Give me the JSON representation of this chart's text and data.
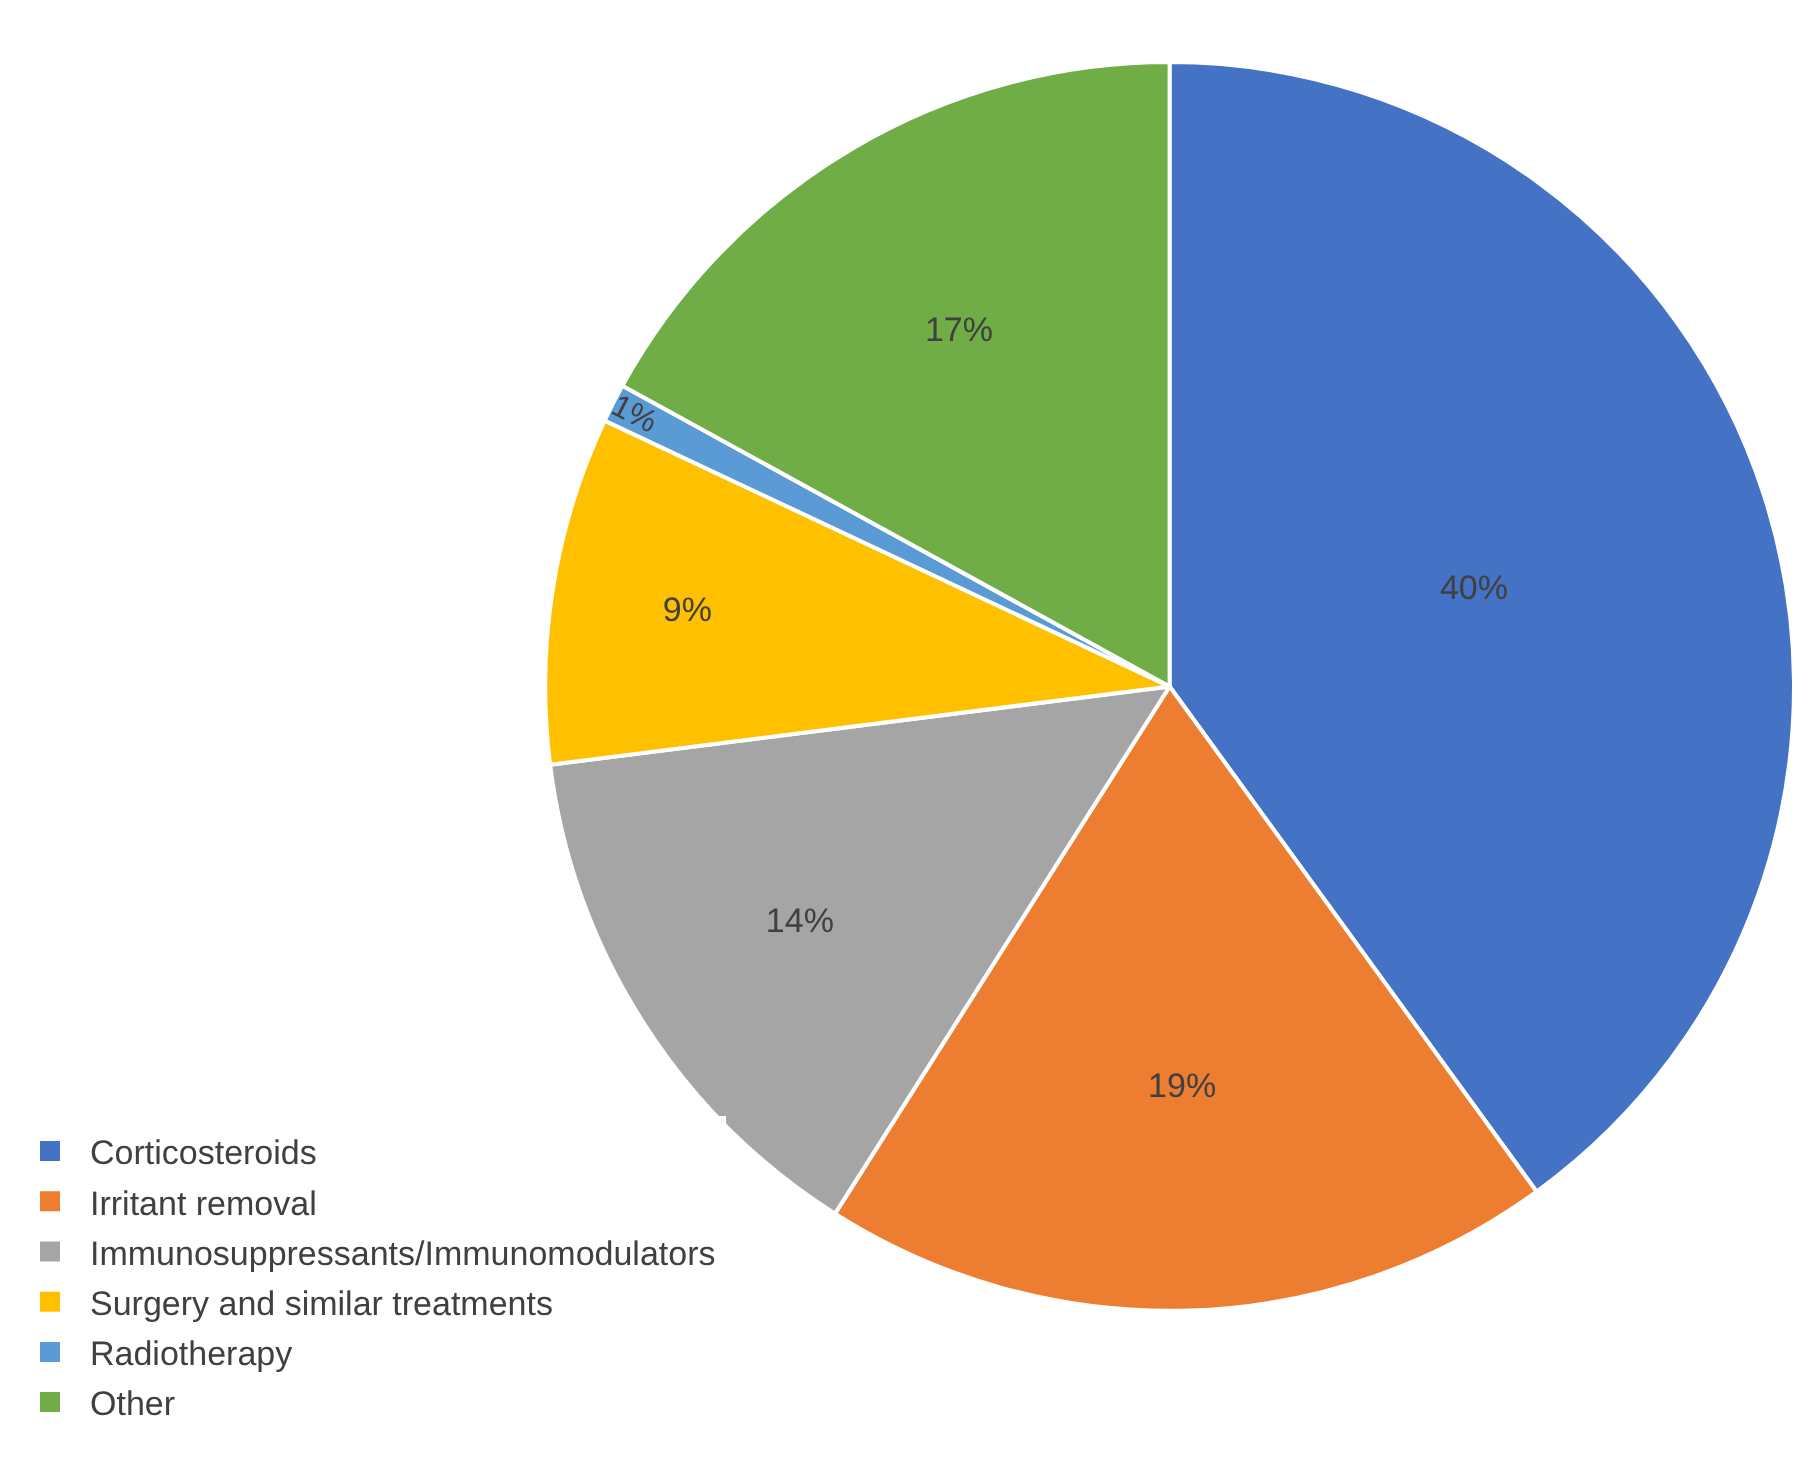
{
  "chart_data": {
    "type": "pie",
    "categories": [
      "Corticosteroids",
      "Irritant removal",
      "Immunosuppressants/Immunomodulators",
      "Surgery and similar treatments",
      "Radiotherapy",
      "Other"
    ],
    "values": [
      40,
      19,
      14,
      9,
      1,
      17
    ],
    "value_labels": [
      "40%",
      "19%",
      "14%",
      "9%",
      "1%",
      "17%"
    ],
    "colors": [
      "#4472c4",
      "#ed7d31",
      "#a5a5a5",
      "#ffc000",
      "#5b9bd5",
      "#70ad47"
    ],
    "legend": "bottom left"
  }
}
